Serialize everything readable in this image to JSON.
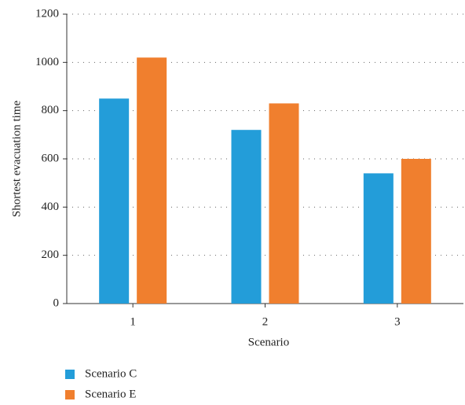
{
  "chart_data": {
    "type": "bar",
    "x_label": "Scenario",
    "y_label": "Shortest evacuation time",
    "categories": [
      "1",
      "2",
      "3"
    ],
    "series": [
      {
        "name": "Scenario C",
        "color": "#239dd9",
        "values": [
          850,
          720,
          540
        ]
      },
      {
        "name": "Scenario E",
        "color": "#f07f2e",
        "values": [
          1020,
          830,
          600
        ]
      }
    ],
    "ylim": [
      0,
      1200
    ],
    "yticks": [
      0,
      200,
      400,
      600,
      800,
      1000,
      1200
    ],
    "grid": true,
    "legend": "bottom-left"
  }
}
